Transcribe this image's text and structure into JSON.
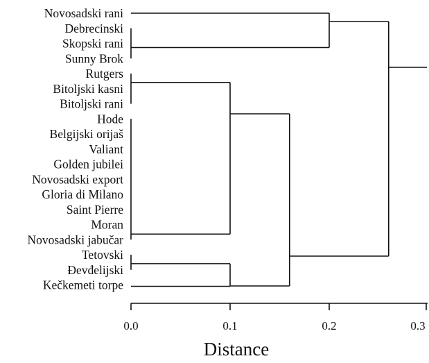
{
  "dendrogram": {
    "leaves": [
      "Novosadski rani",
      "Debrecinski",
      "Skopski rani",
      "Sunny Brok",
      "Rutgers",
      "Bitoljski kasni",
      "Bitoljski rani",
      "Hode",
      "Belgijski orijaš",
      "Valiant",
      "Golden jubilei",
      "Novosadski export",
      "Gloria di Milano",
      "Saint Pierre",
      "Moran",
      "Novosadski jabučar",
      "Tetovski",
      "Đevđelijski",
      "Kečkemeti torpe"
    ],
    "merges": [
      {
        "members": [
          "Debrecinski",
          "Skopski rani",
          "Sunny Brok"
        ],
        "height": 0.0
      },
      {
        "members": [
          "Rutgers",
          "Bitoljski kasni",
          "Bitoljski rani"
        ],
        "height": 0.0
      },
      {
        "members": [
          "Hode",
          "Belgijski orijaš",
          "Valiant",
          "Golden jubilei",
          "Novosadski export",
          "Gloria di Milano",
          "Saint Pierre",
          "Moran",
          "Novosadski jabučar"
        ],
        "height": 0.0
      },
      {
        "members": [
          "Tetovski",
          "Đevđelijski"
        ],
        "height": 0.0
      },
      {
        "members": [
          "Novosadski rani",
          "Debrecinski…Sunny Brok"
        ],
        "height": 0.2
      },
      {
        "members": [
          "Rutgers…Bitoljski rani",
          "Hode…Novosadski jabučar"
        ],
        "height": 0.1
      },
      {
        "members": [
          "Tetovski…Đevđelijski",
          "Kečkemeti torpe"
        ],
        "height": 0.1
      },
      {
        "members": [
          "Rutgers…Novosadski jabučar",
          "Tetovski…Kečkemeti torpe"
        ],
        "height": 0.16
      },
      {
        "members": [
          "Novosadski rani…Sunny Brok",
          "Rutgers…Kečkemeti torpe"
        ],
        "height": 0.26
      }
    ]
  },
  "axis": {
    "title": "Distance",
    "ticks": [
      0.0,
      0.1,
      0.2,
      0.3
    ],
    "tick_labels": [
      "0.0",
      "0.1",
      "0.2",
      "0.3"
    ],
    "range": [
      0.0,
      0.3
    ]
  }
}
